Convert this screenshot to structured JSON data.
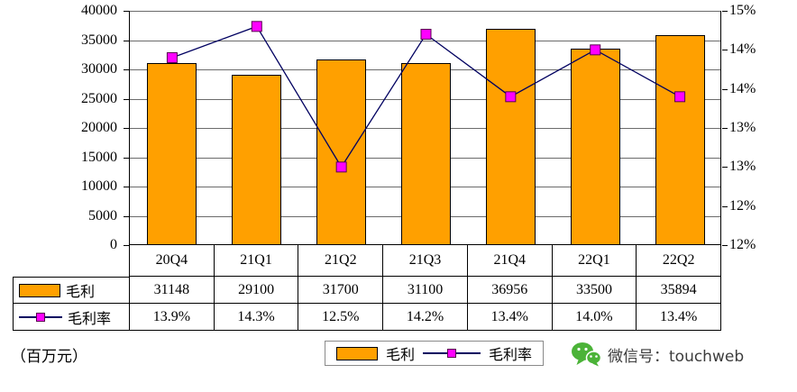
{
  "chart_data": {
    "type": "bar+line",
    "categories": [
      "20Q4",
      "21Q1",
      "21Q2",
      "21Q3",
      "21Q4",
      "22Q1",
      "22Q2"
    ],
    "series": [
      {
        "name": "毛利",
        "type": "bar",
        "axis": "left",
        "values": [
          31148,
          29100,
          31700,
          31100,
          36956,
          33500,
          35894
        ],
        "color": "#FFA000"
      },
      {
        "name": "毛利率",
        "type": "line",
        "axis": "right",
        "values": [
          13.9,
          14.3,
          12.5,
          14.2,
          13.4,
          14.0,
          13.4
        ],
        "line_color": "#000060",
        "marker_color": "#FF00FF",
        "marker_border": "#58004E"
      }
    ],
    "left_axis": {
      "min": 0,
      "max": 40000,
      "step": 5000,
      "tick_labels": [
        "0",
        "5000",
        "10000",
        "15000",
        "20000",
        "25000",
        "30000",
        "35000",
        "40000"
      ]
    },
    "right_axis": {
      "min": 11.5,
      "max": 14.5,
      "step": 0.5,
      "tick_labels": [
        "12%",
        "12%",
        "13%",
        "13%",
        "14%",
        "14%",
        "15%"
      ]
    },
    "table": {
      "row_labels": [
        "毛利",
        "毛利率"
      ],
      "rows": [
        [
          "31148",
          "29100",
          "31700",
          "31100",
          "36956",
          "33500",
          "35894"
        ],
        [
          "13.9%",
          "14.3%",
          "12.5%",
          "14.2%",
          "13.4%",
          "14.0%",
          "13.4%"
        ]
      ]
    },
    "grid": true,
    "legend_position": "bottom"
  },
  "footnote": "（百万元）",
  "watermark": {
    "icon": "wechat-icon",
    "text": "微信号：touchweb"
  }
}
